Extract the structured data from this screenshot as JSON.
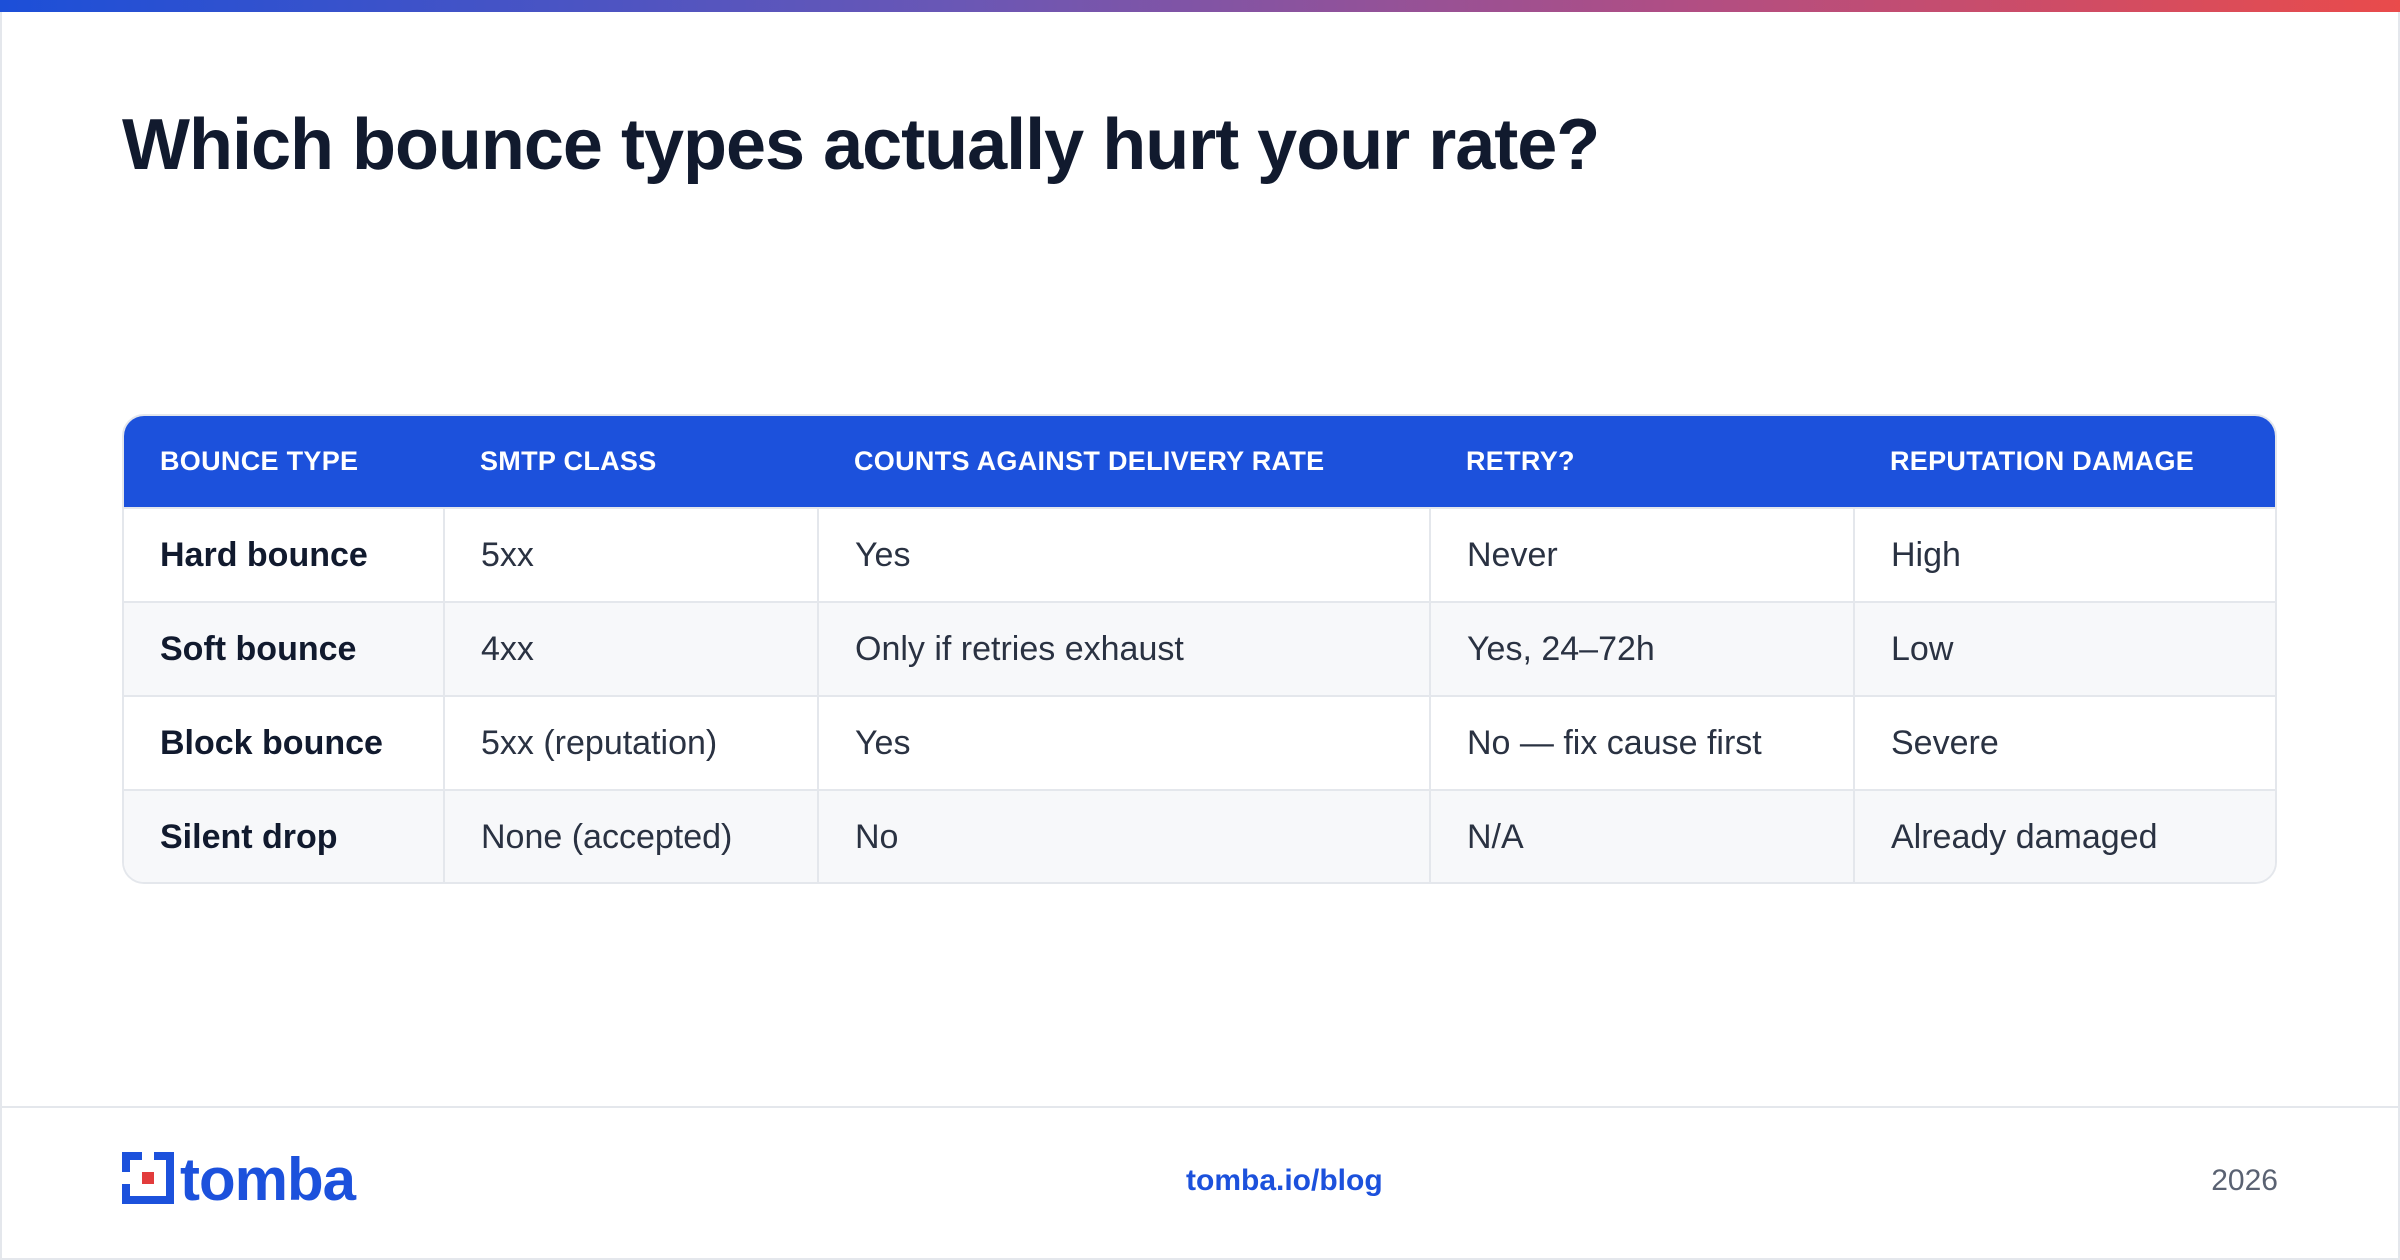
{
  "colors": {
    "accent": "#1c51dc",
    "logo_red": "#e23b3b",
    "title": "#111a2e",
    "border": "#e4e7ec"
  },
  "title": "Which bounce types actually hurt your rate?",
  "table": {
    "headers": [
      "BOUNCE TYPE",
      "SMTP CLASS",
      "COUNTS AGAINST DELIVERY RATE",
      "RETRY?",
      "REPUTATION DAMAGE"
    ],
    "rows": [
      [
        "Hard bounce",
        "5xx",
        "Yes",
        "Never",
        "High"
      ],
      [
        "Soft bounce",
        "4xx",
        "Only if retries exhaust",
        "Yes, 24–72h",
        "Low"
      ],
      [
        "Block bounce",
        "5xx (reputation)",
        "Yes",
        "No — fix cause first",
        "Severe"
      ],
      [
        "Silent drop",
        "None (accepted)",
        "No",
        "N/A",
        "Already damaged"
      ]
    ]
  },
  "footer": {
    "logo_text": "tomba",
    "link": "tomba.io/blog",
    "year": "2026"
  }
}
